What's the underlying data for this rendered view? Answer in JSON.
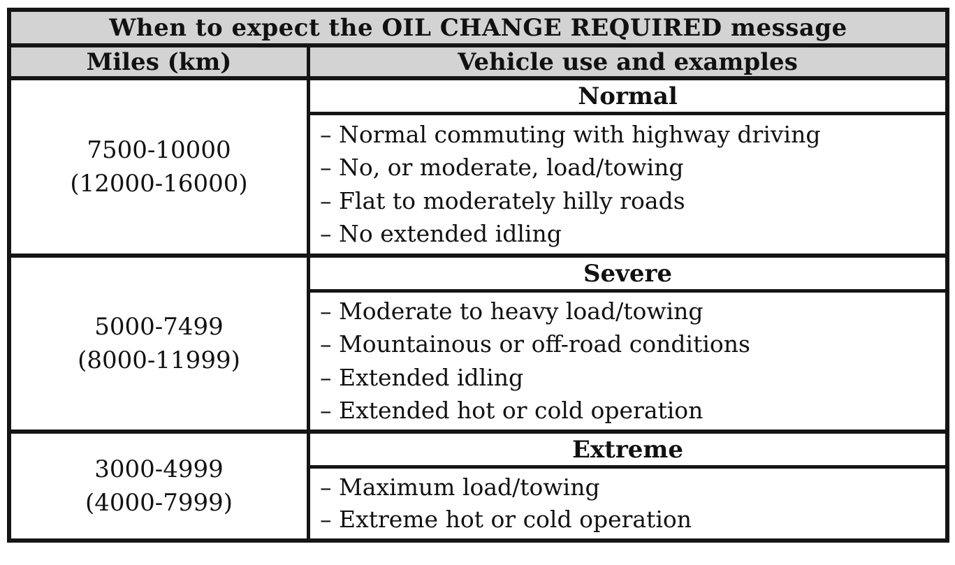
{
  "table": {
    "title": "When to expect the OIL CHANGE REQUIRED message",
    "columns": [
      "Miles (km)",
      "Vehicle use and examples"
    ],
    "rows": [
      {
        "miles": "7500-10000",
        "km": "(12000-16000)",
        "category": "Normal",
        "examples": [
          "– Normal commuting with highway driving",
          "– No, or moderate, load/towing",
          "– Flat to moderately hilly roads",
          "– No extended idling"
        ]
      },
      {
        "miles": "5000-7499",
        "km": "(8000-11999)",
        "category": "Severe",
        "examples": [
          "– Moderate to heavy load/towing",
          "– Mountainous or off-road conditions",
          "– Extended idling",
          "– Extended hot or cold operation"
        ]
      },
      {
        "miles": "3000-4999",
        "km": "(4000-7999)",
        "category": "Extreme",
        "examples": [
          "– Maximum load/towing",
          "– Extreme hot or cold operation"
        ]
      }
    ]
  },
  "colors": {
    "header_background": "#d3d3d3",
    "border": "#151515",
    "text": "#111111",
    "page_background": "#ffffff"
  }
}
